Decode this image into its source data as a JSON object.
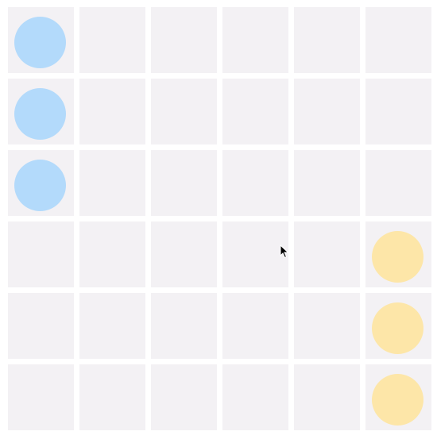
{
  "board": {
    "rows": 6,
    "cols": 6,
    "colors": {
      "cell": "#f3f1f4",
      "blue": "#b3dafb",
      "yellow": "#fde6a8"
    },
    "pieces": [
      {
        "row": 0,
        "col": 0,
        "color": "blue"
      },
      {
        "row": 1,
        "col": 0,
        "color": "blue"
      },
      {
        "row": 2,
        "col": 0,
        "color": "blue"
      },
      {
        "row": 3,
        "col": 5,
        "color": "yellow"
      },
      {
        "row": 4,
        "col": 5,
        "color": "yellow"
      },
      {
        "row": 5,
        "col": 5,
        "color": "yellow"
      }
    ]
  },
  "cursor_icon": "mouse-pointer-icon"
}
